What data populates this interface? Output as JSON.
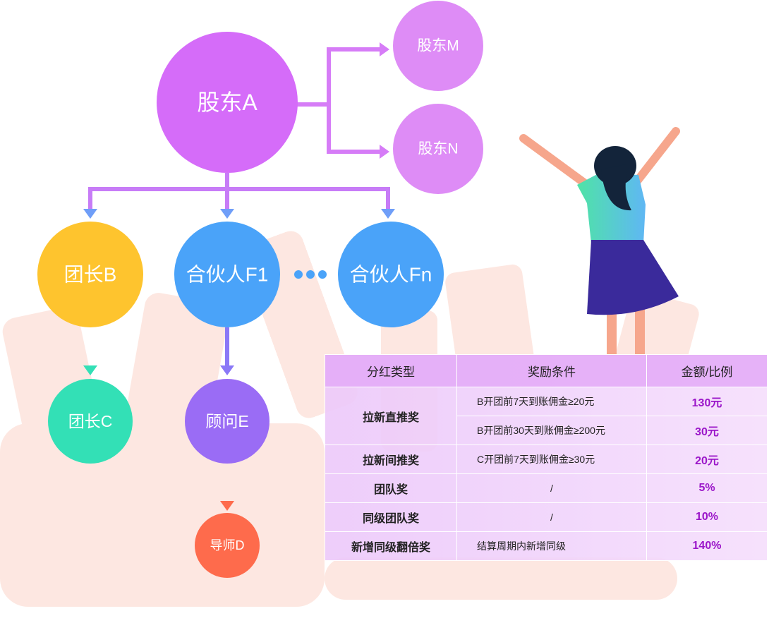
{
  "nodes": [
    {
      "label": "股东A"
    },
    {
      "label": "股东M"
    },
    {
      "label": "股东N"
    },
    {
      "label": "团长B"
    },
    {
      "label": "合伙人F1"
    },
    {
      "label": "合伙人Fn"
    },
    {
      "label": "团长C"
    },
    {
      "label": "顾问E"
    },
    {
      "label": "导师D"
    }
  ],
  "table": {
    "header": [
      "分红类型",
      "奖励条件",
      "金额/比例"
    ],
    "groups": [
      {
        "type": "拉新直推奖",
        "items": [
          [
            "B开团前7天到账佣金≥20元",
            "130元"
          ],
          [
            "B开团前30天到账佣金≥200元",
            "30元"
          ]
        ]
      },
      {
        "type": "拉新间推奖",
        "items": [
          [
            "C开团前7天到账佣金≥30元",
            "20元"
          ]
        ]
      },
      {
        "type": "团队奖",
        "items": [
          [
            "/",
            "5%"
          ]
        ]
      },
      {
        "type": "同级团队奖",
        "items": [
          [
            "/",
            "10%"
          ]
        ]
      },
      {
        "type": "新增同级翻倍奖",
        "items": [
          [
            "结算周期内新增同级",
            "140%"
          ]
        ]
      }
    ]
  }
}
